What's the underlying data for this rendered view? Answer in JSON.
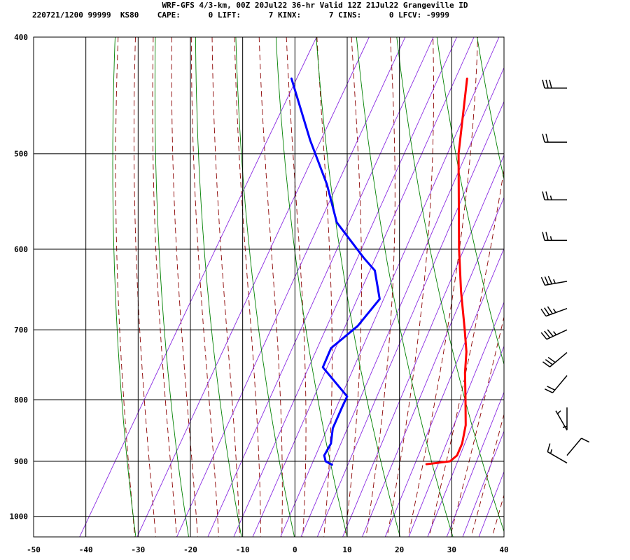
{
  "header": {
    "title": "WRF-GFS 4/3-km, 00Z 20Jul22 36-hr Valid 12Z 21Jul22 Grangeville ID",
    "station_line": "220721/1200 99999  KS80    CAPE:      0 LIFT:      7 KINX:      7 CINS:      0 LFCV: -9999"
  },
  "colors": {
    "temperature": "#ff0000",
    "dewpoint": "#0000ff",
    "isotherm": "#000000",
    "dry_adiabat": "#008000",
    "moist_adiabat": "#8b0000",
    "mixing_ratio": "#8a2be2",
    "wind_barb": "#000000"
  },
  "chart_data": {
    "type": "line",
    "chart_style": "skew-T log-p sounding",
    "x_axis": {
      "ticks": [
        -50,
        -40,
        -30,
        -20,
        -10,
        0,
        10,
        20,
        30,
        40
      ],
      "range": [
        -50,
        40
      ]
    },
    "y_axis": {
      "ticks": [
        400,
        500,
        600,
        700,
        800,
        900,
        1000
      ],
      "range": [
        400,
        1040
      ],
      "scale": "log"
    },
    "grid": true,
    "series": [
      {
        "key": "temperature",
        "points": [
          [
            433,
            -16.6
          ],
          [
            500,
            -10.1
          ],
          [
            600,
            0.3
          ],
          [
            650,
            5.2
          ],
          [
            700,
            10.1
          ],
          [
            730,
            12.8
          ],
          [
            760,
            14.8
          ],
          [
            800,
            17.8
          ],
          [
            840,
            20.6
          ],
          [
            870,
            21.9
          ],
          [
            890,
            22.2
          ],
          [
            900,
            21.5
          ],
          [
            905,
            17.3
          ]
        ]
      },
      {
        "key": "dewpoint",
        "points": [
          [
            433,
            -50.2
          ],
          [
            487,
            -40.0
          ],
          [
            530,
            -32.0
          ],
          [
            570,
            -26.0
          ],
          [
            610,
            -17.0
          ],
          [
            625,
            -13.5
          ],
          [
            660,
            -9.5
          ],
          [
            695,
            -10.8
          ],
          [
            725,
            -13.5
          ],
          [
            752,
            -13.0
          ],
          [
            795,
            -5.2
          ],
          [
            812,
            -5.0
          ],
          [
            845,
            -4.5
          ],
          [
            870,
            -3.2
          ],
          [
            890,
            -3.2
          ],
          [
            900,
            -2.3
          ],
          [
            906,
            -0.7
          ]
        ]
      }
    ],
    "wind_barbs": [
      {
        "p": 441,
        "speed_kt": 30,
        "direction_deg": 270
      },
      {
        "p": 489,
        "speed_kt": 20,
        "direction_deg": 270
      },
      {
        "p": 546,
        "speed_kt": 25,
        "direction_deg": 270
      },
      {
        "p": 590,
        "speed_kt": 25,
        "direction_deg": 270
      },
      {
        "p": 638,
        "speed_kt": 35,
        "direction_deg": 260
      },
      {
        "p": 672,
        "speed_kt": 35,
        "direction_deg": 250
      },
      {
        "p": 700,
        "speed_kt": 35,
        "direction_deg": 245
      },
      {
        "p": 731,
        "speed_kt": 30,
        "direction_deg": 230
      },
      {
        "p": 764,
        "speed_kt": 20,
        "direction_deg": 220
      },
      {
        "p": 812,
        "speed_kt": 5,
        "direction_deg": 180
      },
      {
        "p": 848,
        "speed_kt": 5,
        "direction_deg": 330
      },
      {
        "p": 890,
        "speed_kt": 10,
        "direction_deg": 40
      },
      {
        "p": 903,
        "speed_kt": 15,
        "direction_deg": 300
      }
    ]
  }
}
